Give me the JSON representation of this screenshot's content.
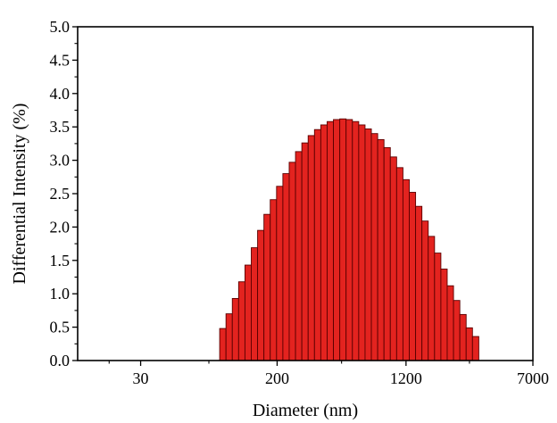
{
  "chart_data": {
    "type": "bar",
    "xlabel": "Diameter (nm)",
    "ylabel": "Differential Intensity (%)",
    "x_scale": "log",
    "xlim": [
      12.5,
      7000
    ],
    "ylim": [
      0,
      5.0
    ],
    "x_ticks": [
      30,
      200,
      1200,
      7000
    ],
    "x_tick_labels": [
      "30",
      "200",
      "1200",
      "7000"
    ],
    "y_ticks": [
      0.0,
      0.5,
      1.0,
      1.5,
      2.0,
      2.5,
      3.0,
      3.5,
      4.0,
      4.5,
      5.0
    ],
    "y_tick_labels": [
      "0.0",
      "0.5",
      "1.0",
      "1.5",
      "2.0",
      "2.5",
      "3.0",
      "3.5",
      "4.0",
      "4.5",
      "5.0"
    ],
    "bar_color": "#e3231f",
    "bar_edge_color": "#5a0000",
    "grid": false,
    "bar_x_start": 90,
    "bar_x_end": 3300,
    "values": [
      0.48,
      0.7,
      0.93,
      1.18,
      1.43,
      1.69,
      1.95,
      2.19,
      2.41,
      2.61,
      2.8,
      2.97,
      3.13,
      3.26,
      3.37,
      3.46,
      3.53,
      3.58,
      3.61,
      3.62,
      3.61,
      3.58,
      3.53,
      3.47,
      3.4,
      3.31,
      3.19,
      3.05,
      2.89,
      2.71,
      2.52,
      2.31,
      2.09,
      1.86,
      1.61,
      1.37,
      1.12,
      0.9,
      0.69,
      0.49,
      0.36
    ]
  }
}
